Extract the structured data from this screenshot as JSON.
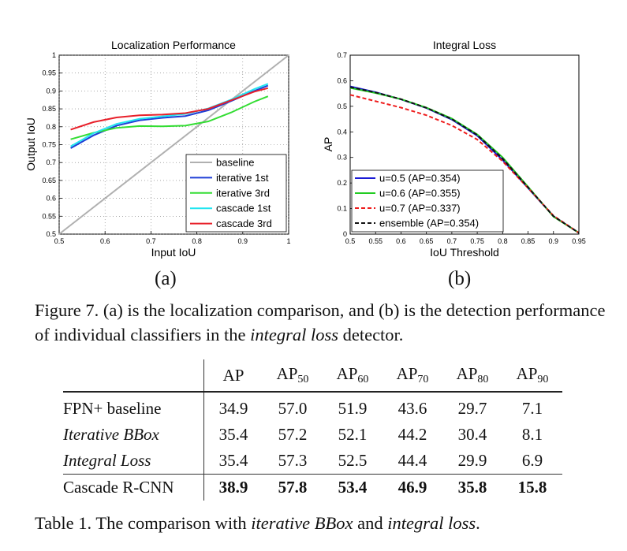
{
  "chart_data": [
    {
      "type": "line",
      "title": "Localization Performance",
      "xlabel": "Input IoU",
      "ylabel": "Output IoU",
      "xlim": [
        0.5,
        1
      ],
      "ylim": [
        0.5,
        1
      ],
      "xticks": [
        "0.5",
        "0.6",
        "0.7",
        "0.8",
        "0.9",
        "1"
      ],
      "yticks": [
        "0.5",
        "0.55",
        "0.6",
        "0.65",
        "0.7",
        "0.75",
        "0.8",
        "0.85",
        "0.9",
        "0.95",
        "1"
      ],
      "grid": true,
      "legend_position": "bottom-right",
      "series": [
        {
          "name": "baseline",
          "color": "#b0b0b0",
          "x": [
            0.5,
            1.0
          ],
          "y": [
            0.5,
            1.0
          ]
        },
        {
          "name": "iterative 1st",
          "color": "#1f3fd6",
          "x": [
            0.525,
            0.575,
            0.625,
            0.675,
            0.725,
            0.775,
            0.825,
            0.875,
            0.925,
            0.955
          ],
          "y": [
            0.74,
            0.776,
            0.803,
            0.818,
            0.825,
            0.83,
            0.846,
            0.872,
            0.9,
            0.915
          ]
        },
        {
          "name": "iterative 3rd",
          "color": "#33dd33",
          "x": [
            0.525,
            0.575,
            0.625,
            0.675,
            0.725,
            0.775,
            0.825,
            0.875,
            0.925,
            0.955
          ],
          "y": [
            0.765,
            0.783,
            0.797,
            0.802,
            0.801,
            0.803,
            0.815,
            0.84,
            0.87,
            0.885
          ]
        },
        {
          "name": "cascade 1st",
          "color": "#22e5f0",
          "x": [
            0.525,
            0.575,
            0.625,
            0.675,
            0.725,
            0.775,
            0.825,
            0.875,
            0.925,
            0.955
          ],
          "y": [
            0.745,
            0.782,
            0.808,
            0.822,
            0.829,
            0.836,
            0.851,
            0.876,
            0.905,
            0.92
          ]
        },
        {
          "name": "cascade 3rd",
          "color": "#e8202a",
          "x": [
            0.525,
            0.575,
            0.625,
            0.675,
            0.725,
            0.775,
            0.825,
            0.875,
            0.925,
            0.955
          ],
          "y": [
            0.792,
            0.813,
            0.826,
            0.832,
            0.834,
            0.838,
            0.85,
            0.874,
            0.898,
            0.908
          ]
        }
      ]
    },
    {
      "type": "line",
      "title": "Integral Loss",
      "xlabel": "IoU Threshold",
      "ylabel": "AP",
      "xlim": [
        0.5,
        0.95
      ],
      "ylim": [
        0,
        0.7
      ],
      "xticks": [
        "0.5",
        "0.55",
        "0.6",
        "0.65",
        "0.7",
        "0.75",
        "0.8",
        "0.85",
        "0.9",
        "0.95"
      ],
      "yticks": [
        "0",
        "0.1",
        "0.2",
        "0.3",
        "0.4",
        "0.5",
        "0.6",
        "0.7"
      ],
      "grid": false,
      "legend_position": "bottom-left",
      "x": [
        0.5,
        0.55,
        0.6,
        0.65,
        0.7,
        0.75,
        0.8,
        0.85,
        0.9,
        0.95
      ],
      "series": [
        {
          "name": "u=0.5 (AP=0.354)",
          "color": "#1a1ad6",
          "dash": "solid",
          "values": [
            0.578,
            0.555,
            0.527,
            0.493,
            0.448,
            0.385,
            0.29,
            0.18,
            0.07,
            0.005
          ]
        },
        {
          "name": "u=0.6 (AP=0.355)",
          "color": "#22cc22",
          "dash": "solid",
          "values": [
            0.572,
            0.552,
            0.528,
            0.495,
            0.452,
            0.39,
            0.3,
            0.185,
            0.068,
            0.005
          ]
        },
        {
          "name": "u=0.7 (AP=0.337)",
          "color": "#ee1c1c",
          "dash": "dashed",
          "values": [
            0.545,
            0.52,
            0.495,
            0.465,
            0.425,
            0.37,
            0.285,
            0.18,
            0.072,
            0.005
          ]
        },
        {
          "name": "ensemble (AP=0.354)",
          "color": "#111111",
          "dash": "dashed",
          "values": [
            0.575,
            0.554,
            0.528,
            0.494,
            0.45,
            0.388,
            0.295,
            0.183,
            0.07,
            0.005
          ]
        }
      ]
    }
  ],
  "subfigure_labels": {
    "a": "(a)",
    "b": "(b)"
  },
  "figure_caption": {
    "prefix": "Figure 7. (a) is the localization comparison, and (b) is the detection performance of individual classifiers in the ",
    "italic": "integral loss",
    "suffix": " detector."
  },
  "table": {
    "headers": [
      {
        "main": "AP",
        "sub": ""
      },
      {
        "main": "AP",
        "sub": "50"
      },
      {
        "main": "AP",
        "sub": "60"
      },
      {
        "main": "AP",
        "sub": "70"
      },
      {
        "main": "AP",
        "sub": "80"
      },
      {
        "main": "AP",
        "sub": "90"
      }
    ],
    "rows": [
      {
        "name": "FPN+ baseline",
        "values": [
          "34.9",
          "57.0",
          "51.9",
          "43.6",
          "29.7",
          "7.1"
        ]
      },
      {
        "name": "Iterative BBox",
        "values": [
          "35.4",
          "57.2",
          "52.1",
          "44.2",
          "30.4",
          "8.1"
        ]
      },
      {
        "name": "Integral Loss",
        "values": [
          "35.4",
          "57.3",
          "52.5",
          "44.4",
          "29.9",
          "6.9"
        ]
      },
      {
        "name": "Cascade R-CNN",
        "values": [
          "38.9",
          "57.8",
          "53.4",
          "46.9",
          "35.8",
          "15.8"
        ]
      }
    ]
  },
  "table_caption": {
    "prefix": "Table 1. The comparison with ",
    "italic1": "iterative BBox",
    "middle": " and ",
    "italic2": "integral loss",
    "suffix": "."
  }
}
